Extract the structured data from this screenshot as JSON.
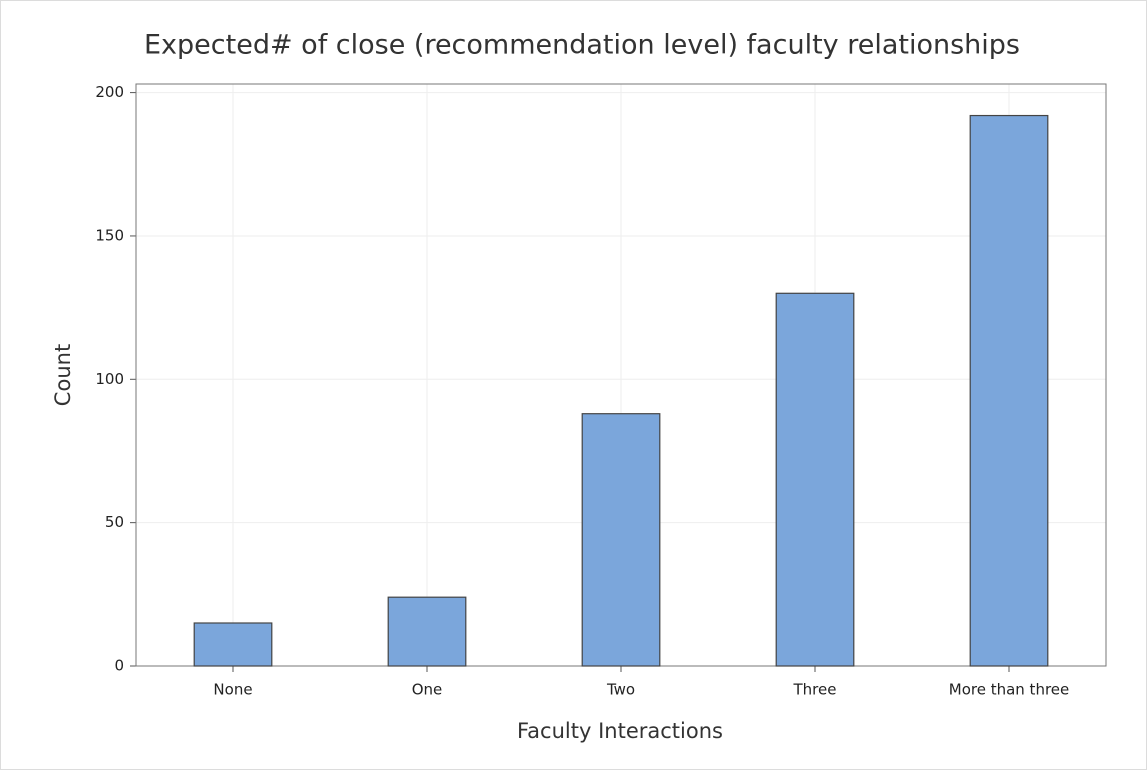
{
  "chart_data": {
    "type": "bar",
    "title": "Expected# of close (recommendation level) faculty relationships",
    "x_label": "Faculty Interactions",
    "y_label": "Count",
    "categories": [
      "None",
      "One",
      "Two",
      "Three",
      "More than three"
    ],
    "values": [
      15,
      24,
      88,
      130,
      192
    ],
    "color": "#7ba6db",
    "ylim": [
      0,
      203
    ],
    "yticks": [
      0,
      50,
      100,
      150,
      200
    ],
    "grid": true
  }
}
